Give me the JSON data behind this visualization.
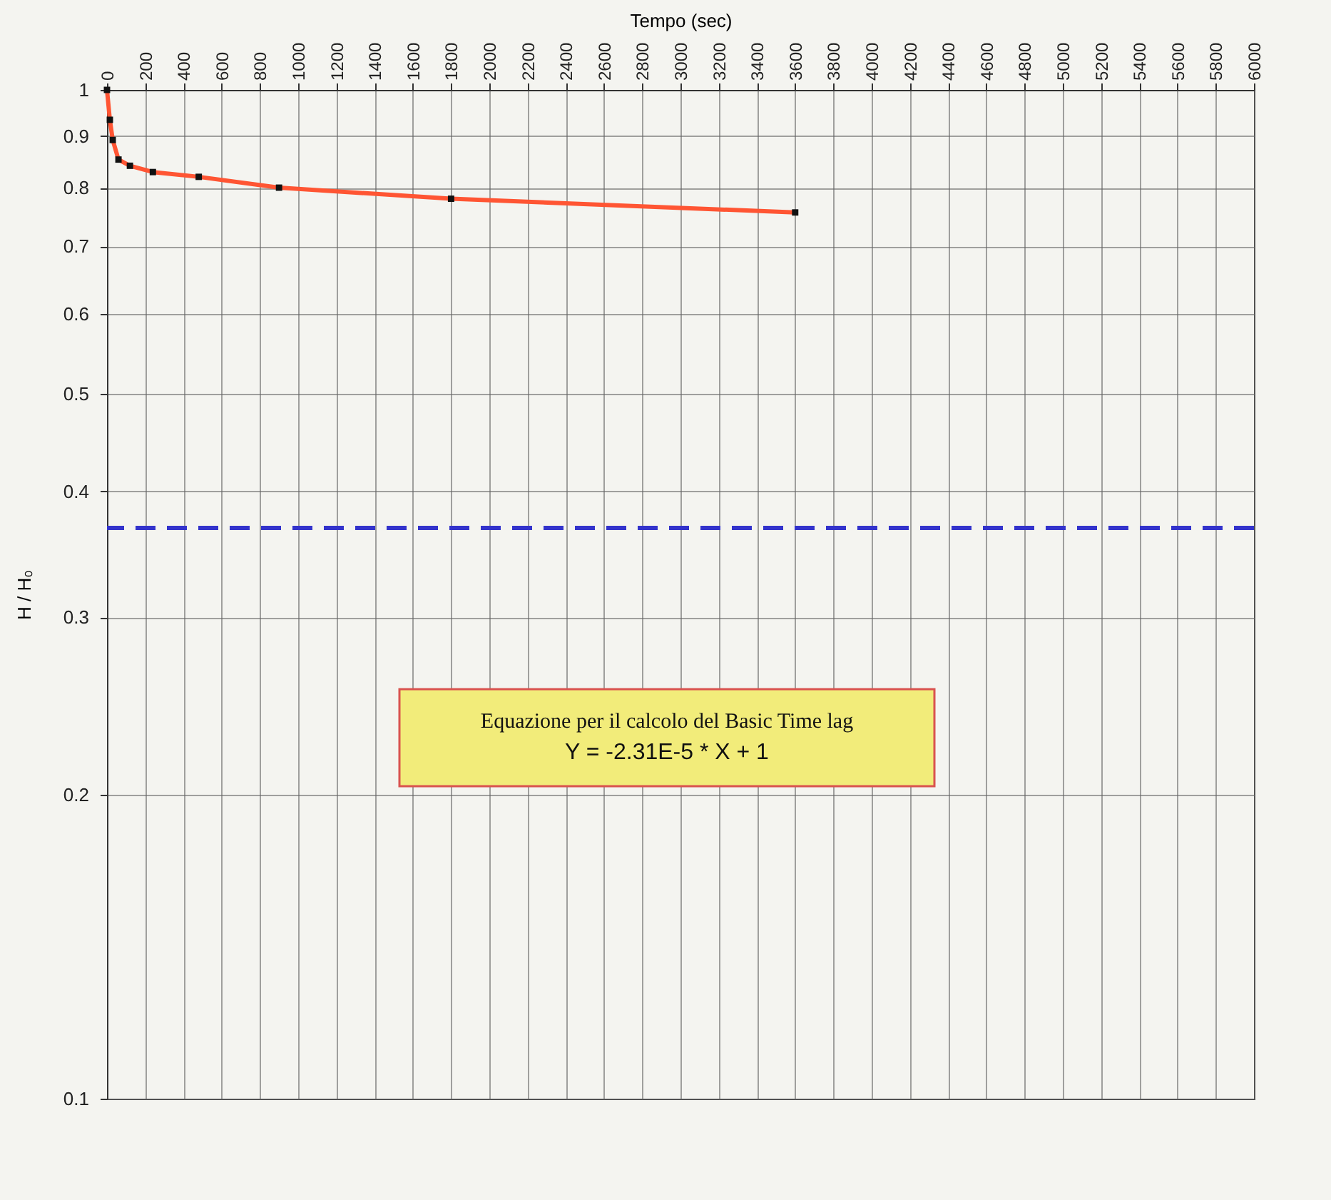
{
  "chart_data": {
    "type": "line",
    "xlabel": "Tempo (sec)",
    "ylabel": "H / H₀",
    "x": [
      0,
      15,
      30,
      60,
      120,
      240,
      480,
      900,
      1800,
      3600
    ],
    "series": [
      {
        "color": "#ff5533",
        "values": [
          1.0,
          0.934,
          0.892,
          0.853,
          0.841,
          0.829,
          0.82,
          0.8,
          0.78,
          0.756
        ]
      }
    ],
    "xlim": [
      0,
      6000
    ],
    "xticks": [
      0,
      200,
      400,
      600,
      800,
      1000,
      1200,
      1400,
      1600,
      1800,
      2000,
      2200,
      2400,
      2600,
      2800,
      3000,
      3200,
      3400,
      3600,
      3800,
      4000,
      4200,
      4400,
      4600,
      4800,
      5000,
      5200,
      5400,
      5600,
      5800,
      6000
    ],
    "ylim": [
      0.1,
      1
    ],
    "yticks": [
      0.1,
      0.2,
      0.3,
      0.4,
      0.5,
      0.6,
      0.7,
      0.8,
      0.9,
      1
    ],
    "log": "y",
    "grid": true,
    "marker": "square",
    "line_style": "solid",
    "ref_lines": [
      {
        "axis": "y",
        "value": 0.368,
        "color": "#3333cc",
        "line_style": "dashed"
      }
    ],
    "annotations": [
      "Equazione per il calcolo del Basic Time lag",
      "Y = -2.31E-5 * X + 1"
    ]
  }
}
